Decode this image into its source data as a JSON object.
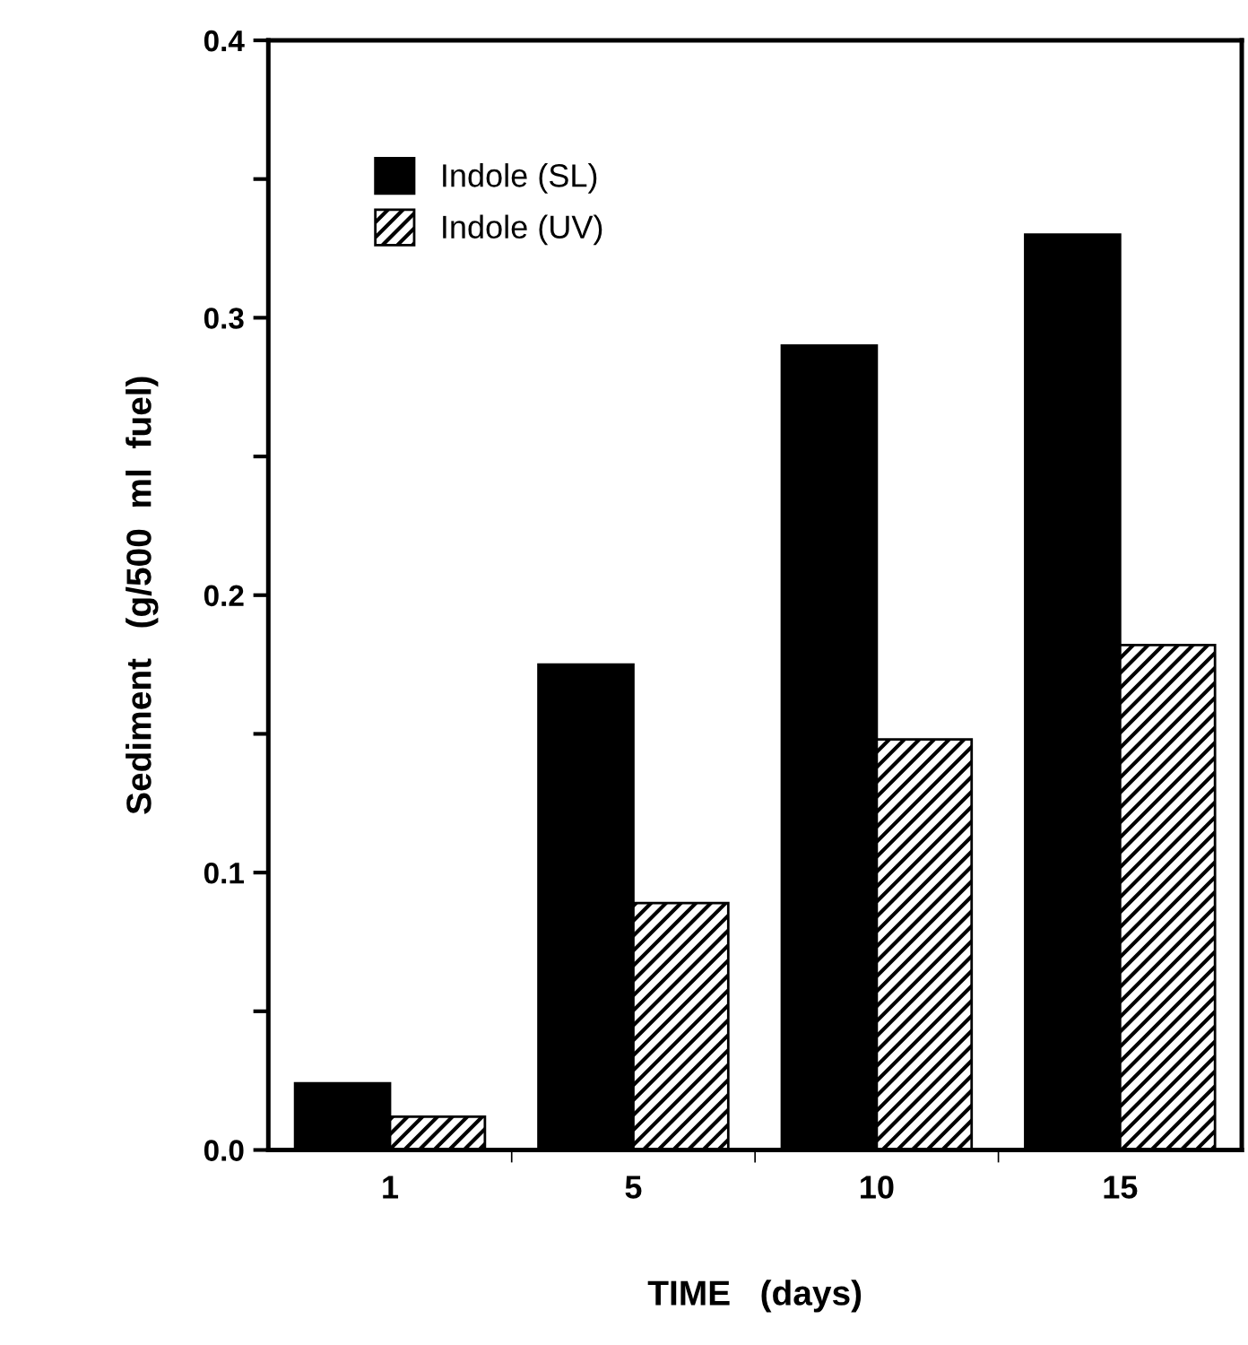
{
  "chart_data": {
    "type": "bar",
    "xlabel": "TIME   (days)",
    "ylabel": "Sediment   (g/500  ml  fuel)",
    "categories": [
      "1",
      "5",
      "10",
      "15"
    ],
    "series": [
      {
        "name": "Indole (SL)",
        "color": "#000000",
        "values": [
          0.024,
          0.175,
          0.29,
          0.33
        ]
      },
      {
        "name": "Indole (UV)",
        "color": "#000000",
        "values": [
          0.012,
          0.089,
          0.148,
          0.182
        ]
      }
    ],
    "ylim": [
      0,
      0.4
    ],
    "yticks": [
      "0.0",
      {
        "value": 0.05,
        "label": null
      },
      0.1,
      {
        "value": 0.15,
        "label": null
      },
      0.2,
      {
        "value": 0.25,
        "label": null
      },
      0.3,
      {
        "value": 0.35,
        "label": null
      },
      0.4
    ],
    "grid": false,
    "legend": "top left"
  }
}
